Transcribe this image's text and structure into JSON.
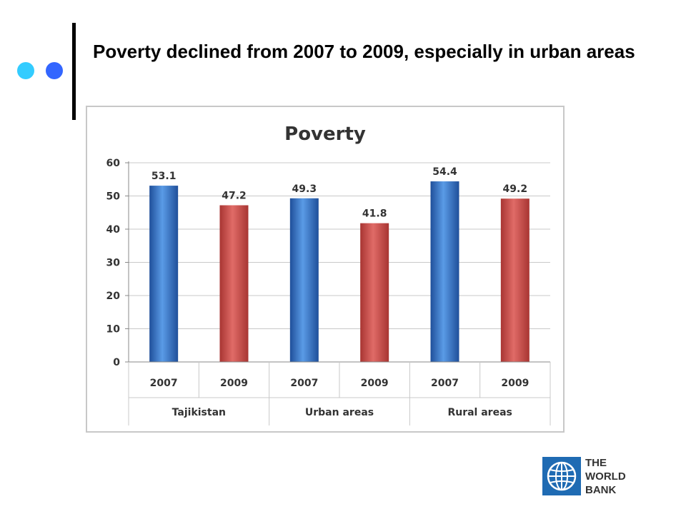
{
  "slide": {
    "title": "Poverty declined from 2007 to 2009, especially in urban areas"
  },
  "logo": {
    "lines": [
      "THE",
      "WORLD",
      "BANK"
    ],
    "icon": "globe-icon"
  },
  "colors": {
    "accent_dot_light": "#33ccff",
    "accent_dot_dark": "#3366ff",
    "bar_2007": "#3a7fd5",
    "bar_2009": "#d9534f",
    "logo_blue": "#1f6bb3"
  },
  "chart_data": {
    "type": "bar",
    "title": "Poverty",
    "groups": [
      "Tajikistan",
      "Urban areas",
      "Rural areas"
    ],
    "categories": [
      "2007",
      "2009",
      "2007",
      "2009",
      "2007",
      "2009"
    ],
    "values": [
      53.1,
      47.2,
      49.3,
      41.8,
      54.4,
      49.2
    ],
    "data_labels": [
      "53.1",
      "47.2",
      "49.3",
      "41.8",
      "54.4",
      "49.2"
    ],
    "ylim": [
      0,
      60
    ],
    "yticks": [
      "0",
      "10",
      "20",
      "30",
      "40",
      "50",
      "60"
    ],
    "grid": true,
    "legend": "none"
  }
}
